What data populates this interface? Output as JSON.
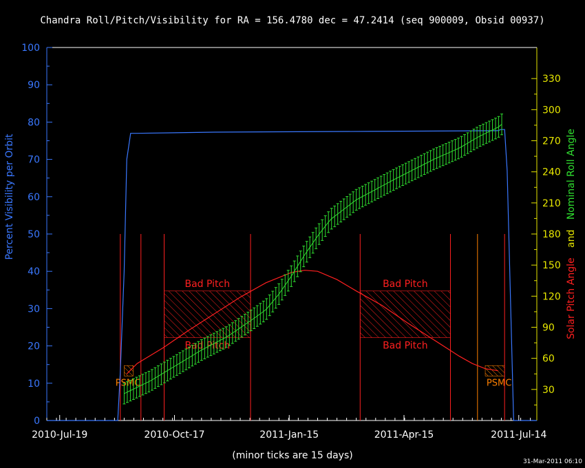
{
  "chart_data": {
    "type": "line",
    "title": "Chandra Roll/Pitch/Visibility for RA = 156.4780 dec = 47.2414 (seq 900009, Obsid 00937)",
    "xlabel": "(minor ticks are 15 days)",
    "timestamp": "31-Mar-2011 06:10",
    "x_axis": {
      "ticks": [
        "2010-Jul-19",
        "2010-Oct-17",
        "2011-Jan-15",
        "2011-Apr-15",
        "2011-Jul-14"
      ],
      "range_days": [
        -10,
        370
      ]
    },
    "y_left": {
      "label": "Percent Visibility per Orbit",
      "range": [
        0,
        100
      ],
      "ticks": [
        "0",
        "10",
        "20",
        "30",
        "40",
        "50",
        "60",
        "70",
        "80",
        "90",
        "100"
      ],
      "color": "#3a78ff"
    },
    "y_right": {
      "label_parts": [
        {
          "text": "Solar Pitch Angle",
          "color": "#ff2020"
        },
        {
          "text": "and",
          "color": "#e8e800"
        },
        {
          "text": "Nominal Roll Angle",
          "color": "#30e030"
        }
      ],
      "range": [
        0,
        360
      ],
      "ticks": [
        "30",
        "60",
        "90",
        "120",
        "150",
        "180",
        "210",
        "240",
        "270",
        "300",
        "330"
      ],
      "color": "#e8e800"
    },
    "series": [
      {
        "name": "Percent Visibility per Orbit",
        "color": "#3a78ff",
        "axis": "left",
        "x": [
          -10,
          45,
          47,
          50,
          52,
          55,
          60,
          120,
          240,
          340,
          342,
          345,
          347,
          352,
          370
        ],
        "y": [
          0,
          0,
          13,
          40,
          70,
          77,
          77,
          77.3,
          77.5,
          77.7,
          78,
          78,
          67,
          0,
          0
        ]
      },
      {
        "name": "Solar Pitch Angle",
        "color": "#ff2020",
        "axis": "right",
        "x": [
          52,
          60,
          80,
          100,
          120,
          140,
          160,
          180,
          190,
          200,
          215,
          230,
          250,
          270,
          290,
          310,
          320,
          330,
          340
        ],
        "y": [
          45,
          55,
          70,
          87,
          103,
          119,
          133,
          143,
          145,
          144,
          136,
          125,
          111,
          94,
          78,
          62,
          55,
          50,
          48
        ]
      },
      {
        "name": "Nominal Roll Angle",
        "color": "#30e030",
        "axis": "right",
        "x": [
          50,
          70,
          90,
          110,
          130,
          150,
          160,
          170,
          180,
          190,
          200,
          210,
          230,
          260,
          290,
          310,
          325,
          340,
          345
        ],
        "y": [
          26,
          38,
          53,
          68,
          81,
          98,
          107,
          122,
          140,
          160,
          178,
          194,
          213,
          233,
          252,
          263,
          274,
          283,
          288
        ],
        "error": 10
      }
    ],
    "regions": [
      {
        "label": "Bad Pitch",
        "x": [
          81,
          148
        ],
        "y": [
          80,
          125
        ],
        "color": "#ff2020"
      },
      {
        "label": "Bad Pitch",
        "x": [
          233,
          303
        ],
        "y": [
          80,
          125
        ],
        "color": "#ff2020"
      },
      {
        "label": "PSMC",
        "x": [
          50,
          57
        ],
        "y": [
          43,
          53
        ],
        "color": "#ff8000"
      },
      {
        "label": "PSMC",
        "x": [
          330,
          345
        ],
        "y": [
          43,
          53
        ],
        "color": "#ff8000"
      }
    ],
    "event_lines": [
      {
        "x": 47,
        "color": "#ff2020"
      },
      {
        "x": 63,
        "color": "#ff2020"
      },
      {
        "x": 81,
        "color": "#ff2020"
      },
      {
        "x": 148,
        "color": "#ff2020"
      },
      {
        "x": 233,
        "color": "#ff2020"
      },
      {
        "x": 303,
        "color": "#ff2020"
      },
      {
        "x": 324,
        "color": "#ff8000"
      },
      {
        "x": 345,
        "color": "#ff2020"
      }
    ],
    "grid": false,
    "minor_tick_days": 15
  }
}
